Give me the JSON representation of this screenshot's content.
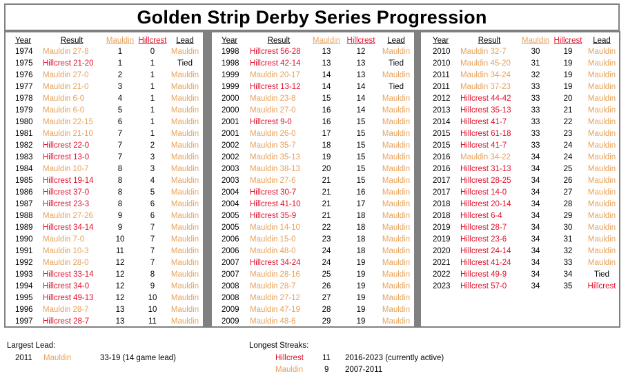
{
  "title": "Golden Strip Derby Series Progression",
  "headers": {
    "year": "Year",
    "result": "Result",
    "mauldin": "Mauldin",
    "hillcrest": "Hillcrest",
    "lead": "Lead"
  },
  "colors": {
    "mauldin": "#e8a25a",
    "hillcrest": "#e0102a",
    "border": "#808080"
  },
  "columns": [
    [
      {
        "year": "1974",
        "result": "Mauldin 27-8",
        "winner": "mauldin",
        "m": "1",
        "h": "0",
        "lead": "Mauldin"
      },
      {
        "year": "1975",
        "result": "Hillcrest 21-20",
        "winner": "hillcrest",
        "m": "1",
        "h": "1",
        "lead": "Tied"
      },
      {
        "year": "1976",
        "result": "Mauldin 27-0",
        "winner": "mauldin",
        "m": "2",
        "h": "1",
        "lead": "Mauldin"
      },
      {
        "year": "1977",
        "result": "Mauldin 21-0",
        "winner": "mauldin",
        "m": "3",
        "h": "1",
        "lead": "Mauldin"
      },
      {
        "year": "1978",
        "result": "Mauldin 6-0",
        "winner": "mauldin",
        "m": "4",
        "h": "1",
        "lead": "Mauldin"
      },
      {
        "year": "1979",
        "result": "Mauldin 6-0",
        "winner": "mauldin",
        "m": "5",
        "h": "1",
        "lead": "Mauldin"
      },
      {
        "year": "1980",
        "result": "Mauldin 22-15",
        "winner": "mauldin",
        "m": "6",
        "h": "1",
        "lead": "Mauldin"
      },
      {
        "year": "1981",
        "result": "Mauldin 21-10",
        "winner": "mauldin",
        "m": "7",
        "h": "1",
        "lead": "Mauldin"
      },
      {
        "year": "1982",
        "result": "Hillcrest 22-0",
        "winner": "hillcrest",
        "m": "7",
        "h": "2",
        "lead": "Mauldin"
      },
      {
        "year": "1983",
        "result": "Hillcrest 13-0",
        "winner": "hillcrest",
        "m": "7",
        "h": "3",
        "lead": "Mauldin"
      },
      {
        "year": "1984",
        "result": "Mauldin 10-7",
        "winner": "mauldin",
        "m": "8",
        "h": "3",
        "lead": "Mauldin"
      },
      {
        "year": "1985",
        "result": "Hillcrest 19-14",
        "winner": "hillcrest",
        "m": "8",
        "h": "4",
        "lead": "Mauldin"
      },
      {
        "year": "1986",
        "result": "Hillcrest 37-0",
        "winner": "hillcrest",
        "m": "8",
        "h": "5",
        "lead": "Mauldin"
      },
      {
        "year": "1987",
        "result": "Hillcrest 23-3",
        "winner": "hillcrest",
        "m": "8",
        "h": "6",
        "lead": "Mauldin"
      },
      {
        "year": "1988",
        "result": "Mauldin 27-26",
        "winner": "mauldin",
        "m": "9",
        "h": "6",
        "lead": "Mauldin"
      },
      {
        "year": "1989",
        "result": "Hillcrest 34-14",
        "winner": "hillcrest",
        "m": "9",
        "h": "7",
        "lead": "Mauldin"
      },
      {
        "year": "1990",
        "result": "Mauldin 7-0",
        "winner": "mauldin",
        "m": "10",
        "h": "7",
        "lead": "Mauldin"
      },
      {
        "year": "1991",
        "result": "Mauldin 10-3",
        "winner": "mauldin",
        "m": "11",
        "h": "7",
        "lead": "Mauldin"
      },
      {
        "year": "1992",
        "result": "Mauldin 28-0",
        "winner": "mauldin",
        "m": "12",
        "h": "7",
        "lead": "Mauldin"
      },
      {
        "year": "1993",
        "result": "Hillcrest 33-14",
        "winner": "hillcrest",
        "m": "12",
        "h": "8",
        "lead": "Mauldin"
      },
      {
        "year": "1994",
        "result": "Hillcrest 34-0",
        "winner": "hillcrest",
        "m": "12",
        "h": "9",
        "lead": "Mauldin"
      },
      {
        "year": "1995",
        "result": "Hillcrest 49-13",
        "winner": "hillcrest",
        "m": "12",
        "h": "10",
        "lead": "Mauldin"
      },
      {
        "year": "1996",
        "result": "Mauldin 28-7",
        "winner": "mauldin",
        "m": "13",
        "h": "10",
        "lead": "Mauldin"
      },
      {
        "year": "1997",
        "result": "Hillcrest 28-7",
        "winner": "hillcrest",
        "m": "13",
        "h": "11",
        "lead": "Mauldin"
      }
    ],
    [
      {
        "year": "1998",
        "result": "Hillcrest 56-28",
        "winner": "hillcrest",
        "m": "13",
        "h": "12",
        "lead": "Mauldin"
      },
      {
        "year": "1998",
        "result": "Hillcrest 42-14",
        "winner": "hillcrest",
        "m": "13",
        "h": "13",
        "lead": "Tied"
      },
      {
        "year": "1999",
        "result": "Mauldin 20-17",
        "winner": "mauldin",
        "m": "14",
        "h": "13",
        "lead": "Mauldin"
      },
      {
        "year": "1999",
        "result": "Hillcrest 13-12",
        "winner": "hillcrest",
        "m": "14",
        "h": "14",
        "lead": "Tied"
      },
      {
        "year": "2000",
        "result": "Mauldin 23-8",
        "winner": "mauldin",
        "m": "15",
        "h": "14",
        "lead": "Mauldin"
      },
      {
        "year": "2000",
        "result": "Mauldin 27-0",
        "winner": "mauldin",
        "m": "16",
        "h": "14",
        "lead": "Mauldin"
      },
      {
        "year": "2001",
        "result": "Hillcrest 9-0",
        "winner": "hillcrest",
        "m": "16",
        "h": "15",
        "lead": "Mauldin"
      },
      {
        "year": "2001",
        "result": "Mauldin 26-0",
        "winner": "mauldin",
        "m": "17",
        "h": "15",
        "lead": "Mauldin"
      },
      {
        "year": "2002",
        "result": "Mauldin 35-7",
        "winner": "mauldin",
        "m": "18",
        "h": "15",
        "lead": "Mauldin"
      },
      {
        "year": "2002",
        "result": "Mauldin 35-13",
        "winner": "mauldin",
        "m": "19",
        "h": "15",
        "lead": "Mauldin"
      },
      {
        "year": "2003",
        "result": "Mauldin 38-13",
        "winner": "mauldin",
        "m": "20",
        "h": "15",
        "lead": "Mauldin"
      },
      {
        "year": "2003",
        "result": "Mauldin 27-6",
        "winner": "mauldin",
        "m": "21",
        "h": "15",
        "lead": "Mauldin"
      },
      {
        "year": "2004",
        "result": "Hillcrest 30-7",
        "winner": "hillcrest",
        "m": "21",
        "h": "16",
        "lead": "Mauldin"
      },
      {
        "year": "2004",
        "result": "Hillcrest 41-10",
        "winner": "hillcrest",
        "m": "21",
        "h": "17",
        "lead": "Mauldin"
      },
      {
        "year": "2005",
        "result": "Hillcrest 35-9",
        "winner": "hillcrest",
        "m": "21",
        "h": "18",
        "lead": "Mauldin"
      },
      {
        "year": "2005",
        "result": "Mauldin 14-10",
        "winner": "mauldin",
        "m": "22",
        "h": "18",
        "lead": "Mauldin"
      },
      {
        "year": "2006",
        "result": "Mauldin 15-0",
        "winner": "mauldin",
        "m": "23",
        "h": "18",
        "lead": "Mauldin"
      },
      {
        "year": "2006",
        "result": "Mauldin 48-0",
        "winner": "mauldin",
        "m": "24",
        "h": "18",
        "lead": "Mauldin"
      },
      {
        "year": "2007",
        "result": "Hillcrest 34-24",
        "winner": "hillcrest",
        "m": "24",
        "h": "19",
        "lead": "Mauldin"
      },
      {
        "year": "2007",
        "result": "Mauldin 28-16",
        "winner": "mauldin",
        "m": "25",
        "h": "19",
        "lead": "Mauldin"
      },
      {
        "year": "2008",
        "result": "Mauldin 28-7",
        "winner": "mauldin",
        "m": "26",
        "h": "19",
        "lead": "Mauldin"
      },
      {
        "year": "2008",
        "result": "Mauldin 27-12",
        "winner": "mauldin",
        "m": "27",
        "h": "19",
        "lead": "Mauldin"
      },
      {
        "year": "2009",
        "result": "Mauldin 47-19",
        "winner": "mauldin",
        "m": "28",
        "h": "19",
        "lead": "Mauldin"
      },
      {
        "year": "2009",
        "result": "Mauldin 48-6",
        "winner": "mauldin",
        "m": "29",
        "h": "19",
        "lead": "Mauldin"
      }
    ],
    [
      {
        "year": "2010",
        "result": "Mauldin 32-7",
        "winner": "mauldin",
        "m": "30",
        "h": "19",
        "lead": "Mauldin"
      },
      {
        "year": "2010",
        "result": "Mauldin 45-20",
        "winner": "mauldin",
        "m": "31",
        "h": "19",
        "lead": "Mauldin"
      },
      {
        "year": "2011",
        "result": "Mauldin 34-24",
        "winner": "mauldin",
        "m": "32",
        "h": "19",
        "lead": "Mauldin"
      },
      {
        "year": "2011",
        "result": "Mauldin 37-23",
        "winner": "mauldin",
        "m": "33",
        "h": "19",
        "lead": "Mauldin"
      },
      {
        "year": "2012",
        "result": "Hillcrest 44-42",
        "winner": "hillcrest",
        "m": "33",
        "h": "20",
        "lead": "Mauldin"
      },
      {
        "year": "2013",
        "result": "Hillcrest 35-13",
        "winner": "hillcrest",
        "m": "33",
        "h": "21",
        "lead": "Mauldin"
      },
      {
        "year": "2014",
        "result": "Hillcrest 41-7",
        "winner": "hillcrest",
        "m": "33",
        "h": "22",
        "lead": "Mauldin"
      },
      {
        "year": "2015",
        "result": "Hillcrest 61-18",
        "winner": "hillcrest",
        "m": "33",
        "h": "23",
        "lead": "Mauldin"
      },
      {
        "year": "2015",
        "result": "Hillcrest 41-7",
        "winner": "hillcrest",
        "m": "33",
        "h": "24",
        "lead": "Mauldin"
      },
      {
        "year": "2016",
        "result": "Mauldin 34-22",
        "winner": "mauldin",
        "m": "34",
        "h": "24",
        "lead": "Mauldin"
      },
      {
        "year": "2016",
        "result": "Hillcrest 31-13",
        "winner": "hillcrest",
        "m": "34",
        "h": "25",
        "lead": "Mauldin"
      },
      {
        "year": "2017",
        "result": "Hillcrest 28-25",
        "winner": "hillcrest",
        "m": "34",
        "h": "26",
        "lead": "Mauldin"
      },
      {
        "year": "2017",
        "result": "Hillcrest 14-0",
        "winner": "hillcrest",
        "m": "34",
        "h": "27",
        "lead": "Mauldin"
      },
      {
        "year": "2018",
        "result": "Hillcrest 20-14",
        "winner": "hillcrest",
        "m": "34",
        "h": "28",
        "lead": "Mauldin"
      },
      {
        "year": "2018",
        "result": "Hillcrest 6-4",
        "winner": "hillcrest",
        "m": "34",
        "h": "29",
        "lead": "Mauldin"
      },
      {
        "year": "2019",
        "result": "Hillcrest 28-7",
        "winner": "hillcrest",
        "m": "34",
        "h": "30",
        "lead": "Mauldin"
      },
      {
        "year": "2019",
        "result": "Hillcrest 23-6",
        "winner": "hillcrest",
        "m": "34",
        "h": "31",
        "lead": "Mauldin"
      },
      {
        "year": "2020",
        "result": "Hillcrest 24-14",
        "winner": "hillcrest",
        "m": "34",
        "h": "32",
        "lead": "Mauldin"
      },
      {
        "year": "2021",
        "result": "Hillcrest 41-24",
        "winner": "hillcrest",
        "m": "34",
        "h": "33",
        "lead": "Mauldin"
      },
      {
        "year": "2022",
        "result": "Hillcrest 49-9",
        "winner": "hillcrest",
        "m": "34",
        "h": "34",
        "lead": "Tied"
      },
      {
        "year": "2023",
        "result": "Hillcrest 57-0",
        "winner": "hillcrest",
        "m": "34",
        "h": "35",
        "lead": "Hillcrest"
      }
    ]
  ],
  "largest_lead": {
    "label": "Largest Lead:",
    "year": "2011",
    "team": "Mauldin",
    "detail": "33-19 (14 game lead)"
  },
  "streaks": {
    "label": "Longest Streaks:",
    "items": [
      {
        "team": "Hillcrest",
        "count": "11",
        "range": "2016-2023 (currently active)"
      },
      {
        "team": "Mauldin",
        "count": "9",
        "range": "2007-2011"
      }
    ]
  }
}
